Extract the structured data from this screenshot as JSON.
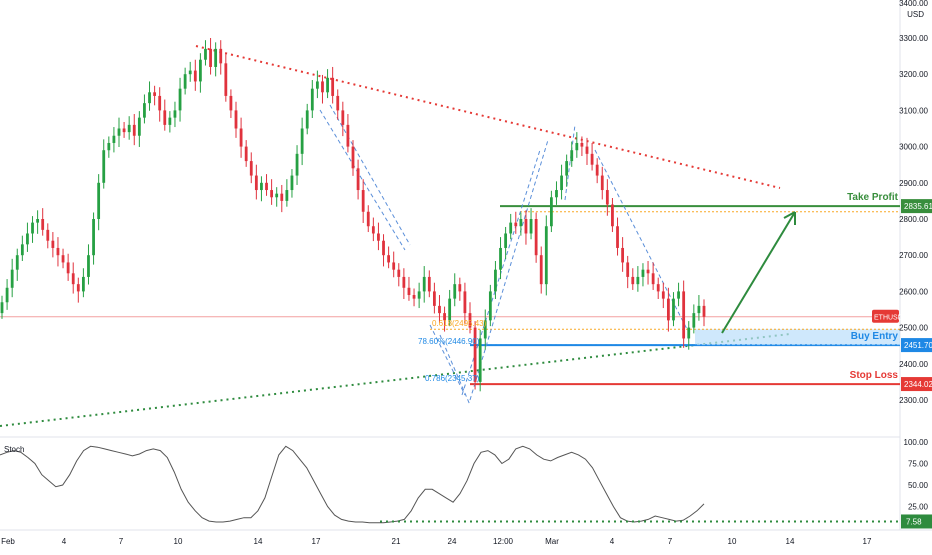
{
  "chart_data": [
    {
      "type": "candlestick",
      "symbol": "ETHUSD",
      "currency": "USD",
      "ylim": [
        2220,
        3400
      ],
      "y_ticks": [
        2300,
        2400,
        2500,
        2600,
        2700,
        2800,
        2900,
        3000,
        3100,
        3200,
        3300
      ],
      "y_tick_labels": [
        "2300.00",
        "2400.00",
        "2500.00",
        "2600.00",
        "2700.00",
        "2800.00",
        "2900.00",
        "3000.00",
        "3100.00",
        "3200.00",
        "3300.00"
      ],
      "top_tick_label": "3400.00",
      "x_tick_labels": [
        "Feb",
        "4",
        "7",
        "10",
        "14",
        "17",
        "21",
        "24",
        "12:00",
        "Mar",
        "4",
        "7",
        "10",
        "14",
        "17"
      ],
      "levels": [
        {
          "name": "Take Profit",
          "value": 2835.61,
          "label": "2835.61",
          "color": "#388e3c"
        },
        {
          "name": "Buy Entry",
          "value": 2451.7,
          "label": "2451.70",
          "color": "#1e88e5"
        },
        {
          "name": "Stop Loss",
          "value": 2344.02,
          "label": "2344.02",
          "color": "#e53935"
        }
      ],
      "current_price_label": "ETHUSD",
      "current_price": 2530,
      "fib_labels": [
        {
          "text": "0.618(2495.43)",
          "value": 2495.43,
          "color": "#f9a825"
        },
        {
          "text": "78.60%(2446.90)",
          "value": 2446.9,
          "color": "#1e88e5"
        },
        {
          "text": "0.786(2345.37)",
          "value": 2345.37,
          "color": "#1e88e5"
        }
      ],
      "closes": [
        2570,
        2610,
        2660,
        2700,
        2730,
        2760,
        2790,
        2800,
        2770,
        2740,
        2720,
        2700,
        2680,
        2650,
        2620,
        2600,
        2640,
        2700,
        2800,
        2900,
        2990,
        3010,
        3030,
        3050,
        3040,
        3060,
        3030,
        3080,
        3120,
        3150,
        3140,
        3100,
        3060,
        3080,
        3100,
        3160,
        3200,
        3210,
        3180,
        3240,
        3270,
        3220,
        3270,
        3230,
        3140,
        3100,
        3050,
        3000,
        2960,
        2920,
        2880,
        2900,
        2880,
        2860,
        2870,
        2850,
        2880,
        2920,
        2980,
        3050,
        3100,
        3160,
        3180,
        3150,
        3190,
        3140,
        3100,
        3060,
        3000,
        2940,
        2880,
        2820,
        2780,
        2760,
        2740,
        2700,
        2680,
        2660,
        2640,
        2610,
        2590,
        2580,
        2600,
        2640,
        2600,
        2560,
        2540,
        2520,
        2580,
        2620,
        2600,
        2540,
        2500,
        2350,
        2470,
        2520,
        2600,
        2660,
        2720,
        2760,
        2790,
        2780,
        2800,
        2760,
        2800,
        2700,
        2620,
        2780,
        2860,
        2880,
        2920,
        2960,
        2990,
        3010,
        3000,
        2980,
        2950,
        2920,
        2880,
        2840,
        2780,
        2720,
        2680,
        2640,
        2620,
        2640,
        2660,
        2650,
        2620,
        2600,
        2580,
        2520,
        2580,
        2600,
        2470,
        2500,
        2540,
        2560,
        2530
      ],
      "stoch": {
        "label": "Stoch",
        "value_label": "7.58",
        "ylim": [
          0,
          100
        ],
        "y_ticks": [
          25,
          50,
          75,
          100
        ],
        "y_tick_labels": [
          "25.00",
          "50.00",
          "75.00",
          "100.00"
        ],
        "values": [
          85,
          88,
          90,
          88,
          82,
          75,
          62,
          55,
          48,
          50,
          62,
          78,
          90,
          95,
          94,
          92,
          90,
          88,
          86,
          84,
          86,
          90,
          92,
          90,
          82,
          65,
          45,
          30,
          20,
          12,
          8,
          7,
          7,
          8,
          10,
          12,
          12,
          20,
          35,
          60,
          85,
          95,
          90,
          80,
          70,
          55,
          40,
          25,
          15,
          10,
          8,
          7,
          7,
          6,
          6,
          6,
          7,
          8,
          10,
          20,
          35,
          45,
          45,
          40,
          35,
          30,
          40,
          55,
          75,
          88,
          90,
          85,
          75,
          80,
          92,
          95,
          92,
          85,
          80,
          78,
          82,
          85,
          88,
          85,
          80,
          70,
          55,
          40,
          25,
          12,
          8,
          7,
          8,
          10,
          14,
          12,
          10,
          8,
          9,
          14,
          20,
          28
        ]
      }
    }
  ]
}
